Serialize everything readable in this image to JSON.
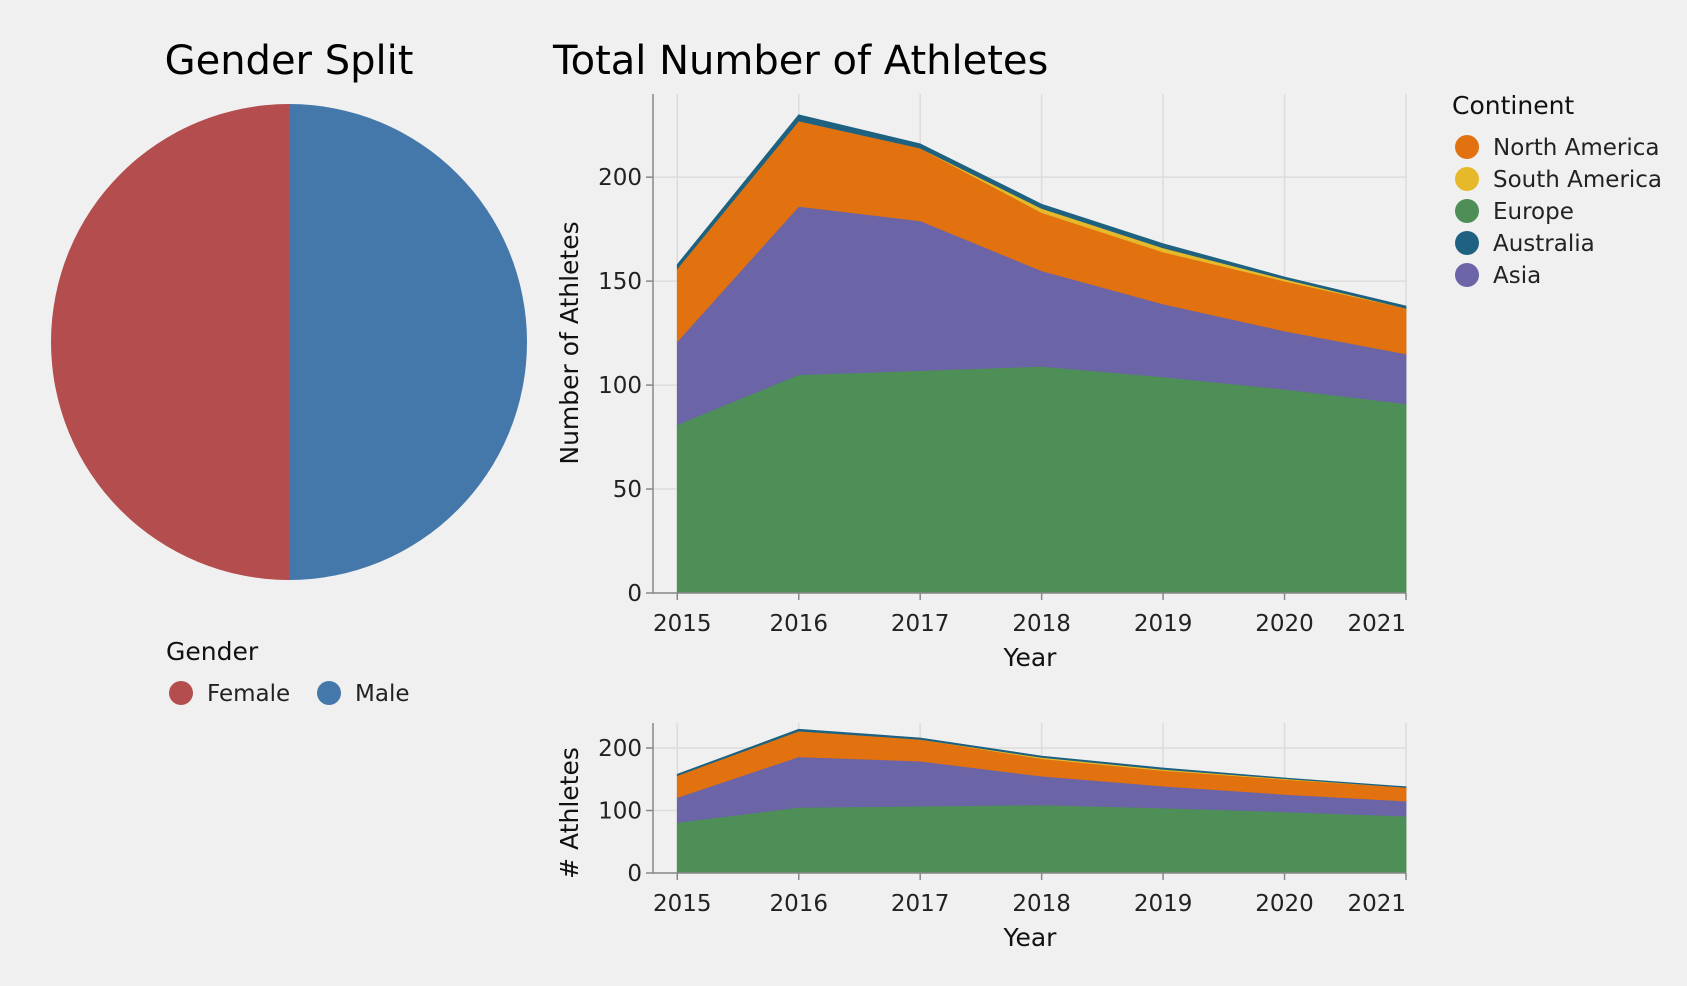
{
  "chart_data": [
    {
      "type": "pie",
      "title": "Gender Split",
      "legend_title": "Gender",
      "legend_position": "bottom",
      "slices": [
        {
          "label": "Female",
          "value": 50,
          "color": "#b44d4d"
        },
        {
          "label": "Male",
          "value": 50,
          "color": "#4477aa"
        }
      ]
    },
    {
      "type": "area",
      "stacked": true,
      "title": "Total Number of Athletes",
      "xlabel": "Year",
      "ylabel": "Number of Athletes",
      "x": [
        2015,
        2016,
        2017,
        2018,
        2019,
        2020,
        2021
      ],
      "xlim": [
        2014.8,
        2021
      ],
      "ylim": [
        0,
        240
      ],
      "yticks": [
        0,
        50,
        100,
        150,
        200
      ],
      "grid": true,
      "legend_title": "Continent",
      "legend_position": "right",
      "legend_order": [
        "North America",
        "South America",
        "Europe",
        "Australia",
        "Asia"
      ],
      "series": [
        {
          "name": "Europe",
          "color": "#4d8f57",
          "values": [
            81,
            105,
            107,
            109,
            104,
            98,
            91
          ]
        },
        {
          "name": "Asia",
          "color": "#6b64a6",
          "values": [
            40,
            81,
            72,
            46,
            35,
            28,
            24
          ]
        },
        {
          "name": "North America",
          "color": "#e2710f",
          "values": [
            35,
            41,
            35,
            28,
            25,
            24,
            22
          ]
        },
        {
          "name": "South America",
          "color": "#e6b92a",
          "values": [
            0,
            0,
            0,
            2,
            2,
            1,
            0
          ]
        },
        {
          "name": "Australia",
          "color": "#1e6180",
          "values": [
            2,
            3,
            2,
            2,
            2,
            1,
            1
          ]
        }
      ]
    },
    {
      "type": "area",
      "stacked": true,
      "title": "",
      "xlabel": "Year",
      "ylabel": "# Athletes",
      "x": [
        2015,
        2016,
        2017,
        2018,
        2019,
        2020,
        2021
      ],
      "xlim": [
        2014.8,
        2021
      ],
      "ylim": [
        0,
        240
      ],
      "yticks": [
        0,
        100,
        200
      ],
      "grid": true,
      "series": [
        {
          "name": "Europe",
          "color": "#4d8f57",
          "values": [
            81,
            105,
            107,
            109,
            104,
            98,
            91
          ]
        },
        {
          "name": "Asia",
          "color": "#6b64a6",
          "values": [
            40,
            81,
            72,
            46,
            35,
            28,
            24
          ]
        },
        {
          "name": "North America",
          "color": "#e2710f",
          "values": [
            35,
            41,
            35,
            28,
            25,
            24,
            22
          ]
        },
        {
          "name": "South America",
          "color": "#e6b92a",
          "values": [
            0,
            0,
            0,
            2,
            2,
            1,
            0
          ]
        },
        {
          "name": "Australia",
          "color": "#1e6180",
          "values": [
            2,
            3,
            2,
            2,
            2,
            1,
            1
          ]
        }
      ]
    }
  ]
}
